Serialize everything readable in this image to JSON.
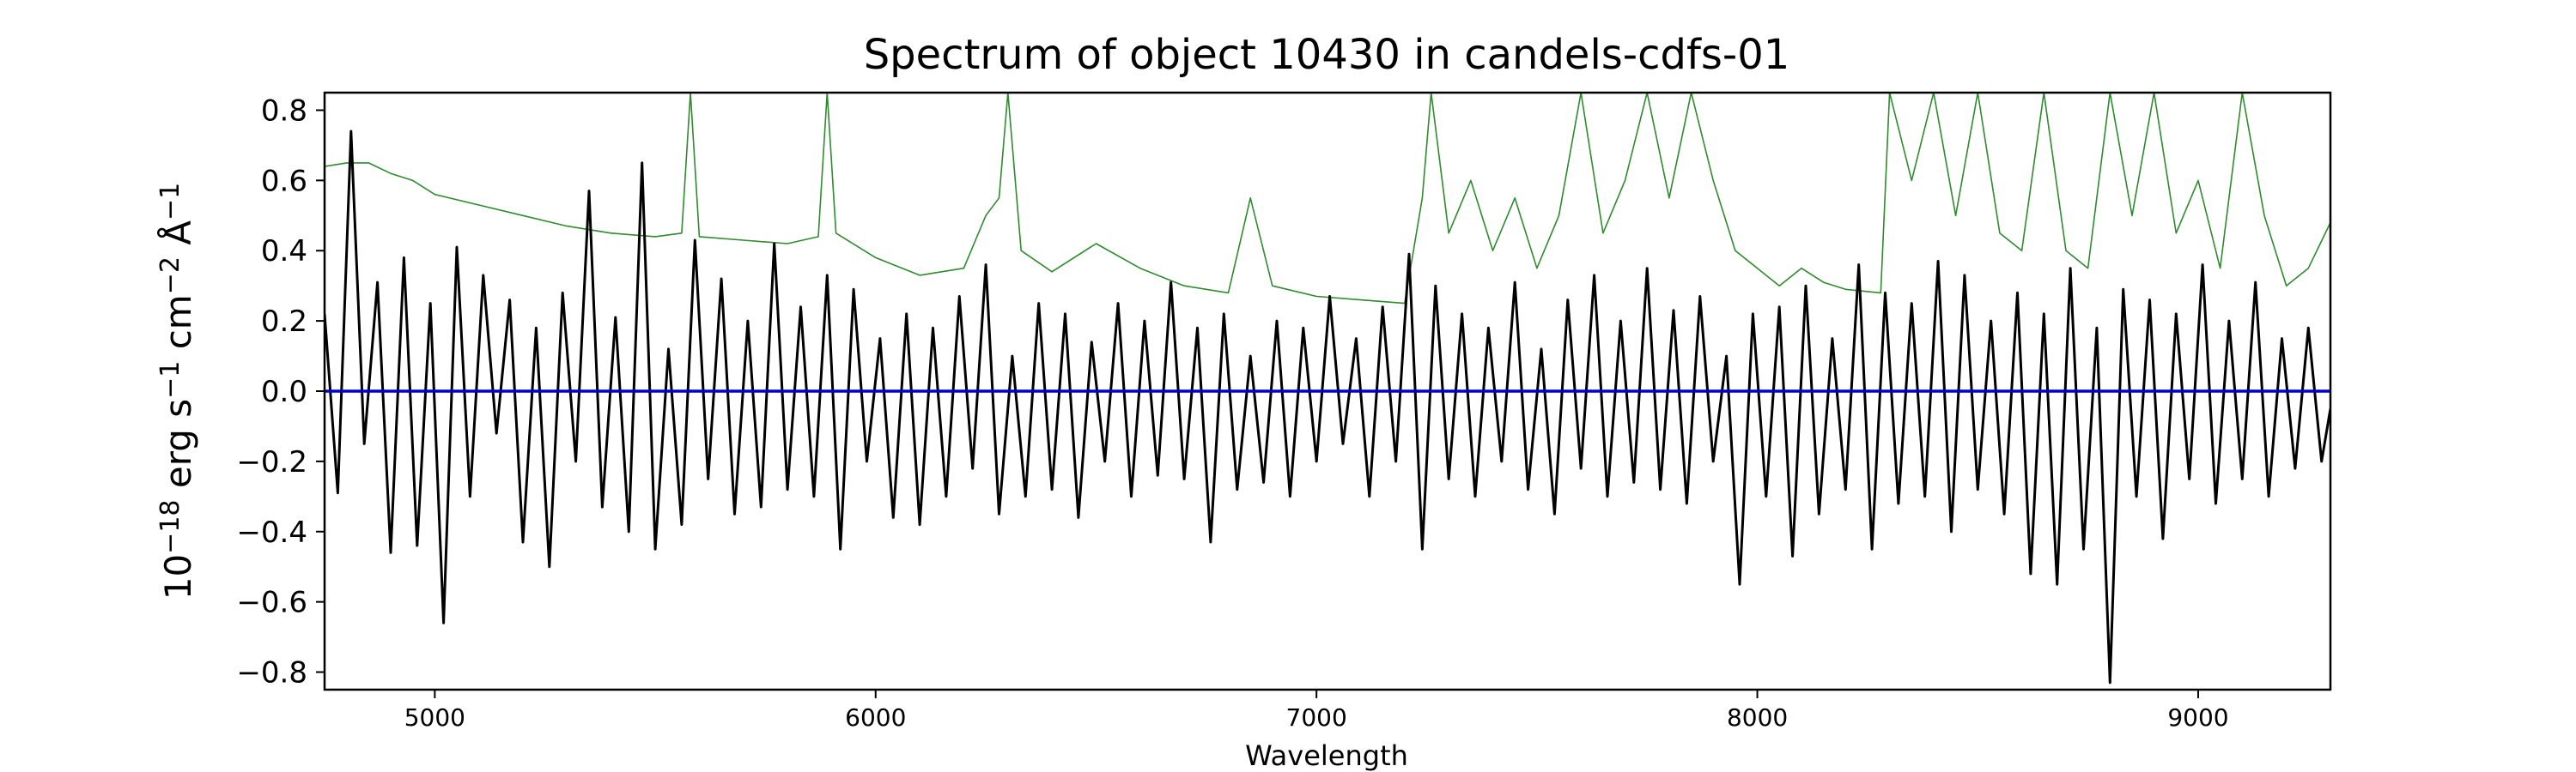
{
  "chart_data": {
    "type": "line",
    "title": "Spectrum of object 10430 in candels-cdfs-01",
    "xlabel": "Wavelength",
    "ylabel": "10$^{-18}$ erg s$^{-1}$ cm$^{-2}$ Å$^{-1}$",
    "ylabel_parts": {
      "base": "10",
      "exp1": "−18",
      "erg": " erg s",
      "exp2": "−1",
      "cm": " cm",
      "exp3": "−2",
      "ang": " Å",
      "exp4": "−1"
    },
    "xlim": [
      4750,
      9300
    ],
    "ylim": [
      -0.85,
      0.85
    ],
    "xticks": [
      5000,
      6000,
      7000,
      8000,
      9000
    ],
    "xtick_labels": [
      "5000",
      "6000",
      "7000",
      "8000",
      "9000"
    ],
    "yticks": [
      -0.8,
      -0.6,
      -0.4,
      -0.2,
      0.0,
      0.2,
      0.4,
      0.6,
      0.8
    ],
    "ytick_labels": [
      "−0.8",
      "−0.6",
      "−0.4",
      "−0.2",
      "0.0",
      "0.2",
      "0.4",
      "0.6",
      "0.8"
    ],
    "grid": false,
    "series": [
      {
        "color": "#000000",
        "x": [
          4750,
          4780,
          4810,
          4840,
          4870,
          4900,
          4930,
          4960,
          4990,
          5020,
          5050,
          5080,
          5110,
          5140,
          5170,
          5200,
          5230,
          5260,
          5290,
          5320,
          5350,
          5380,
          5410,
          5440,
          5470,
          5500,
          5530,
          5560,
          5590,
          5620,
          5650,
          5680,
          5710,
          5740,
          5770,
          5800,
          5830,
          5860,
          5890,
          5920,
          5950,
          5980,
          6010,
          6040,
          6070,
          6100,
          6130,
          6160,
          6190,
          6220,
          6250,
          6280,
          6310,
          6340,
          6370,
          6400,
          6430,
          6460,
          6490,
          6520,
          6550,
          6580,
          6610,
          6640,
          6670,
          6700,
          6730,
          6760,
          6790,
          6820,
          6850,
          6880,
          6910,
          6940,
          6970,
          7000,
          7030,
          7060,
          7090,
          7120,
          7150,
          7180,
          7210,
          7240,
          7270,
          7300,
          7330,
          7360,
          7390,
          7420,
          7450,
          7480,
          7510,
          7540,
          7570,
          7600,
          7630,
          7660,
          7690,
          7720,
          7750,
          7780,
          7810,
          7840,
          7870,
          7900,
          7930,
          7960,
          7990,
          8020,
          8050,
          8080,
          8110,
          8140,
          8170,
          8200,
          8230,
          8260,
          8290,
          8320,
          8350,
          8380,
          8410,
          8440,
          8470,
          8500,
          8530,
          8560,
          8590,
          8620,
          8650,
          8680,
          8710,
          8740,
          8770,
          8800,
          8830,
          8860,
          8890,
          8920,
          8950,
          8980,
          9010,
          9040,
          9070,
          9100,
          9130,
          9160,
          9190,
          9220,
          9250,
          9280,
          9300
        ],
        "y": [
          0.22,
          -0.29,
          0.74,
          -0.15,
          0.31,
          -0.46,
          0.38,
          -0.44,
          0.25,
          -0.66,
          0.41,
          -0.3,
          0.33,
          -0.12,
          0.26,
          -0.43,
          0.18,
          -0.5,
          0.28,
          -0.2,
          0.57,
          -0.33,
          0.21,
          -0.4,
          0.65,
          -0.45,
          0.12,
          -0.38,
          0.43,
          -0.25,
          0.32,
          -0.35,
          0.2,
          -0.33,
          0.42,
          -0.28,
          0.24,
          -0.3,
          0.33,
          -0.45,
          0.29,
          -0.2,
          0.15,
          -0.36,
          0.22,
          -0.38,
          0.18,
          -0.3,
          0.27,
          -0.22,
          0.36,
          -0.35,
          0.1,
          -0.3,
          0.25,
          -0.28,
          0.22,
          -0.36,
          0.14,
          -0.2,
          0.25,
          -0.3,
          0.2,
          -0.24,
          0.31,
          -0.25,
          0.18,
          -0.43,
          0.22,
          -0.28,
          0.1,
          -0.26,
          0.2,
          -0.3,
          0.18,
          -0.2,
          0.27,
          -0.15,
          0.15,
          -0.3,
          0.24,
          -0.2,
          0.39,
          -0.45,
          0.3,
          -0.25,
          0.22,
          -0.3,
          0.18,
          -0.2,
          0.31,
          -0.28,
          0.12,
          -0.35,
          0.26,
          -0.22,
          0.33,
          -0.3,
          0.2,
          -0.26,
          0.35,
          -0.28,
          0.23,
          -0.32,
          0.27,
          -0.2,
          0.1,
          -0.55,
          0.22,
          -0.3,
          0.24,
          -0.47,
          0.3,
          -0.35,
          0.15,
          -0.28,
          0.36,
          -0.45,
          0.28,
          -0.32,
          0.25,
          -0.3,
          0.37,
          -0.4,
          0.33,
          -0.28,
          0.2,
          -0.35,
          0.28,
          -0.52,
          0.22,
          -0.55,
          0.35,
          -0.45,
          0.18,
          -0.83,
          0.29,
          -0.3,
          0.26,
          -0.42,
          0.22,
          -0.25,
          0.36,
          -0.32,
          0.2,
          -0.25,
          0.31,
          -0.3,
          0.15,
          -0.22,
          0.18,
          -0.2,
          -0.05
        ]
      },
      {
        "color": "#2e8b2e",
        "x": [
          4750,
          4800,
          4850,
          4900,
          4950,
          5000,
          5100,
          5200,
          5300,
          5400,
          5500,
          5560,
          5580,
          5600,
          5700,
          5800,
          5870,
          5890,
          5910,
          6000,
          6100,
          6200,
          6250,
          6280,
          6300,
          6330,
          6400,
          6500,
          6600,
          6700,
          6800,
          6850,
          6900,
          7000,
          7100,
          7200,
          7240,
          7260,
          7300,
          7350,
          7400,
          7450,
          7500,
          7550,
          7600,
          7650,
          7700,
          7750,
          7800,
          7850,
          7900,
          7950,
          8000,
          8050,
          8100,
          8150,
          8200,
          8280,
          8300,
          8350,
          8400,
          8450,
          8500,
          8550,
          8600,
          8650,
          8700,
          8750,
          8800,
          8850,
          8900,
          8950,
          9000,
          9050,
          9100,
          9150,
          9200,
          9250,
          9300
        ],
        "y": [
          0.64,
          0.65,
          0.65,
          0.62,
          0.6,
          0.56,
          0.53,
          0.5,
          0.47,
          0.45,
          0.44,
          0.45,
          0.85,
          0.44,
          0.43,
          0.42,
          0.44,
          0.85,
          0.45,
          0.38,
          0.33,
          0.35,
          0.5,
          0.55,
          0.85,
          0.4,
          0.34,
          0.42,
          0.35,
          0.3,
          0.28,
          0.55,
          0.3,
          0.27,
          0.26,
          0.25,
          0.55,
          0.85,
          0.45,
          0.6,
          0.4,
          0.55,
          0.35,
          0.5,
          0.85,
          0.45,
          0.6,
          0.85,
          0.55,
          0.85,
          0.6,
          0.4,
          0.35,
          0.3,
          0.35,
          0.31,
          0.29,
          0.28,
          0.85,
          0.6,
          0.85,
          0.5,
          0.85,
          0.45,
          0.4,
          0.85,
          0.4,
          0.35,
          0.85,
          0.5,
          0.85,
          0.45,
          0.6,
          0.35,
          0.85,
          0.5,
          0.3,
          0.35,
          0.48
        ]
      },
      {
        "color": "#0000cc",
        "x": [
          4750,
          9300
        ],
        "y": [
          0.0,
          0.0
        ]
      }
    ]
  }
}
